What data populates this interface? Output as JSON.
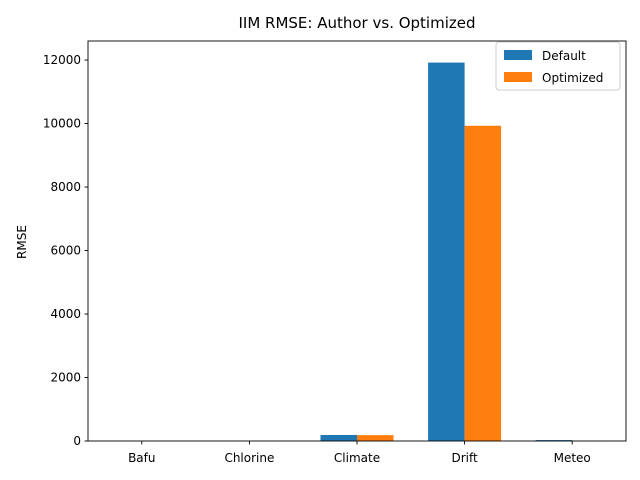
{
  "chart_data": {
    "type": "bar",
    "title": "IIM RMSE: Author vs. Optimized",
    "xlabel": "",
    "ylabel": "RMSE",
    "categories": [
      "Bafu",
      "Chlorine",
      "Climate",
      "Drift",
      "Meteo"
    ],
    "series": [
      {
        "name": "Default",
        "color": "#1f77b4",
        "values": [
          2,
          3,
          190,
          11920,
          30
        ]
      },
      {
        "name": "Optimized",
        "color": "#ff7f0e",
        "values": [
          1,
          2,
          185,
          9930,
          10
        ]
      }
    ],
    "ylim": [
      0,
      12600
    ],
    "yticks": [
      0,
      2000,
      4000,
      6000,
      8000,
      10000,
      12000
    ],
    "grid": false,
    "legend_position": "top-right"
  }
}
